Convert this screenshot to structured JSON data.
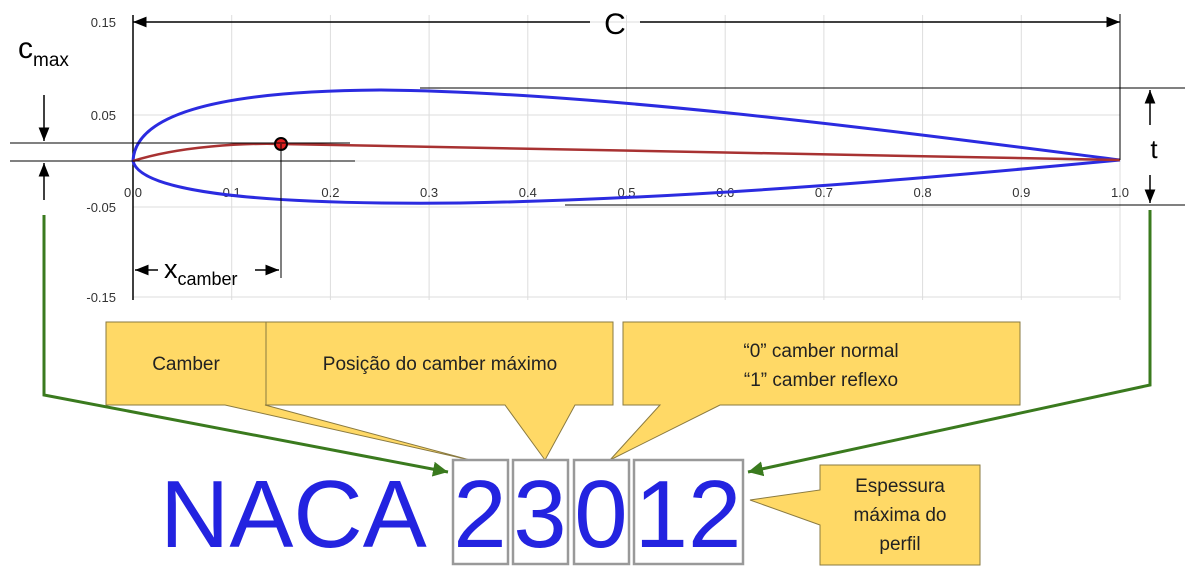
{
  "axes": {
    "y_ticks": [
      "0.15",
      "0.05",
      "-0.05",
      "-0.15"
    ],
    "x_ticks": [
      "0.0",
      "0.1",
      "0.2",
      "0.3",
      "0.4",
      "0.5",
      "0.6",
      "0.7",
      "0.8",
      "0.9",
      "1.0"
    ]
  },
  "dimensions": {
    "chord": "C",
    "thickness": "t",
    "max_camber": {
      "base": "c",
      "sub": "max"
    },
    "camber_position": {
      "base": "x",
      "sub": "camber"
    }
  },
  "callouts": {
    "camber": "Camber",
    "camber_position": "Posição do camber máximo",
    "reflex": [
      "“0” camber normal",
      "“1” camber reflexo"
    ],
    "thickness": [
      "Espessura",
      "máxima do",
      "perfil"
    ]
  },
  "designation": {
    "prefix": "NACA",
    "digits": [
      "2",
      "3",
      "0",
      "12"
    ]
  }
}
